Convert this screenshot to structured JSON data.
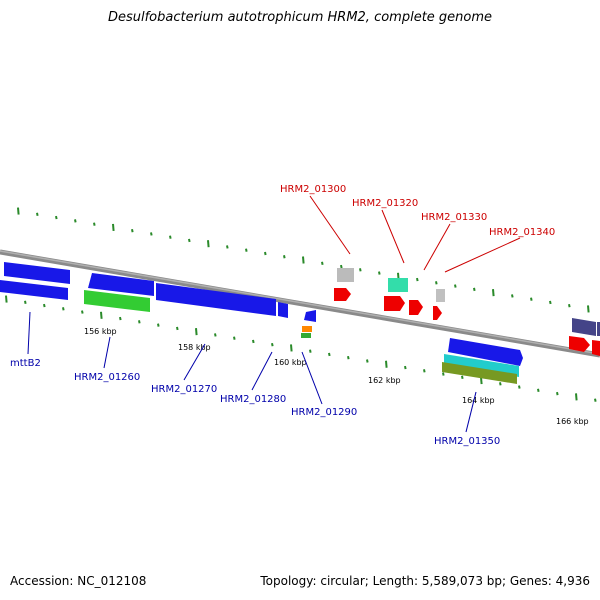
{
  "title": "Desulfobacterium autotrophicum HRM2, complete genome",
  "footer": {
    "accession": "Accession: NC_012108",
    "summary": "Topology: circular; Length: 5,589,073 bp; Genes: 4,936"
  },
  "colors": {
    "backbone": "#808080",
    "tick": "#2a8a2a",
    "blue_gene": "#1010e0",
    "green_gene": "#33cc33",
    "red_gene": "#ee0000",
    "grey_gene": "#b8b8b8",
    "teal_gene": "#22dd99",
    "cyan_gene": "#22cccc",
    "olive_gene": "#779922",
    "orange_gene": "#ff8800",
    "navy_gene": "#3a3a80",
    "label_blue": "#0000aa",
    "label_red": "#cc0000"
  },
  "scale_labels": [
    "156 kbp",
    "158 kbp",
    "160 kbp",
    "162 kbp",
    "164 kbp",
    "166 kbp"
  ],
  "gene_labels_top": [
    "HRM2_01300",
    "HRM2_01320",
    "HRM2_01330",
    "HRM2_01340"
  ],
  "gene_labels_bottom": [
    "mttB2",
    "HRM2_01260",
    "HRM2_01270",
    "HRM2_01280",
    "HRM2_01290",
    "HRM2_01350"
  ]
}
